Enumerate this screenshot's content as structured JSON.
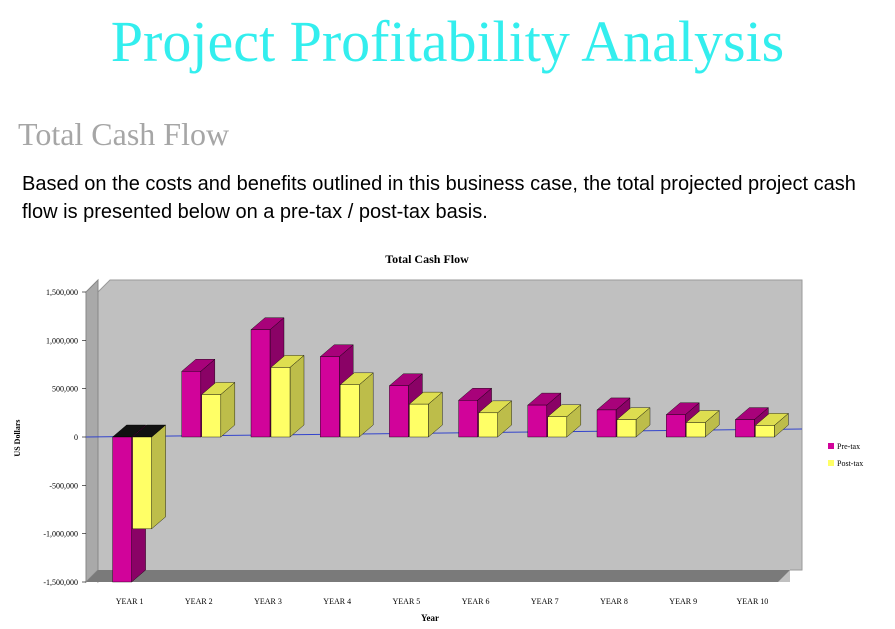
{
  "page": {
    "title": "Project Profitability Analysis",
    "section_title": "Total Cash Flow",
    "intro": "Based on the costs and benefits outlined in this business case, the total projected project cash flow is presented below on a pre-tax / post-tax basis."
  },
  "colors": {
    "title": "#33eeee",
    "section": "#a6a6a6",
    "plot_bg": "#c0c0c0",
    "pre_tax": "#d1039a",
    "post_tax": "#ffff66",
    "zero_line": "#3344cc"
  },
  "chart_data": {
    "type": "bar",
    "title": "Total Cash Flow",
    "xlabel": "Year",
    "ylabel": "US Dollars",
    "ylim": [
      -1500000,
      1500000
    ],
    "yticks": [
      1500000,
      1000000,
      500000,
      0,
      -500000,
      -1000000,
      -1500000
    ],
    "ytick_labels": [
      "1,500,000",
      "1,000,000",
      "500,000",
      "0",
      "-500,000",
      "-1,000,000",
      "-1,500,000"
    ],
    "categories": [
      "YEAR 1",
      "YEAR 2",
      "YEAR 3",
      "YEAR 4",
      "YEAR 5",
      "YEAR 6",
      "YEAR 7",
      "YEAR 8",
      "YEAR 9",
      "YEAR 10"
    ],
    "series": [
      {
        "name": "Pre-tax",
        "values": [
          -1500000,
          680000,
          1110000,
          830000,
          530000,
          380000,
          330000,
          280000,
          230000,
          180000
        ]
      },
      {
        "name": "Post-tax",
        "values": [
          -950000,
          440000,
          720000,
          540000,
          340000,
          250000,
          210000,
          180000,
          150000,
          120000
        ]
      }
    ],
    "legend_position": "right",
    "grid": false
  }
}
